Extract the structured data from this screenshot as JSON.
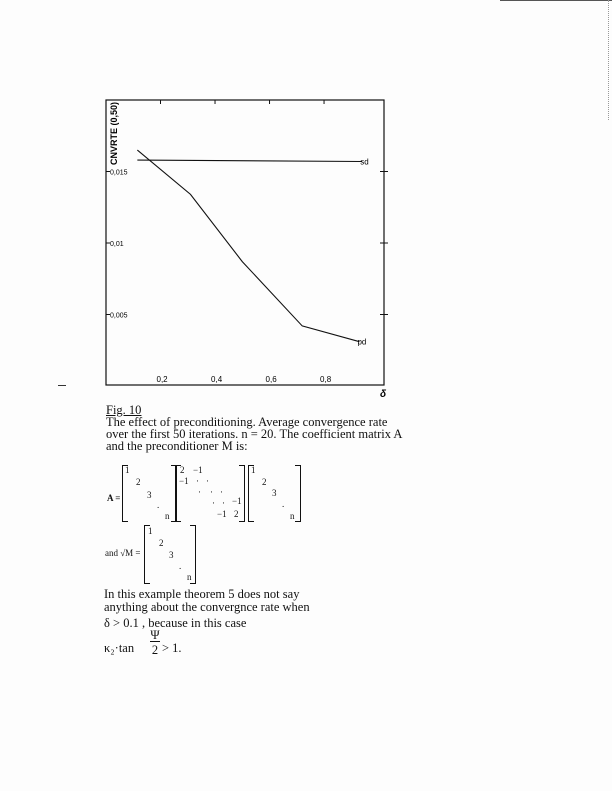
{
  "chart_data": {
    "type": "line",
    "xlabel": "δ",
    "ylabel": "CNVRTE (0,50)",
    "xlim": [
      0,
      1.02
    ],
    "ylim": [
      0,
      0.02
    ],
    "x_ticks": [
      "0,2",
      "0,4",
      "0,6",
      "0,8"
    ],
    "x_tick_values": [
      0.2,
      0.4,
      0.6,
      0.8
    ],
    "y_ticks": [
      "0,015",
      "0,01",
      "0,005"
    ],
    "y_tick_values": [
      0.015,
      0.01,
      0.005
    ],
    "grid": false,
    "series": [
      {
        "name": "sd",
        "x": [
          0.115,
          0.94
        ],
        "y": [
          0.0158,
          0.0157
        ]
      },
      {
        "name": "pd",
        "x": [
          0.115,
          0.31,
          0.5,
          0.72,
          0.93
        ],
        "y": [
          0.0165,
          0.0134,
          0.0087,
          0.0042,
          0.0031
        ]
      }
    ]
  },
  "caption": {
    "fig_label": "Fig. 10",
    "lines": [
      "The effect of preconditioning. Average convergence rate",
      "over the first 50 iterations. n = 20. The coefficient matrix A",
      "and the preconditioner M is:"
    ]
  },
  "math": {
    "a_label": "A =",
    "diag": [
      "1",
      "2",
      "3",
      ".",
      "n"
    ],
    "tri": [
      "2",
      "−1",
      "−1",
      "·",
      "·",
      "·",
      "·",
      "·",
      "·",
      "·",
      "−1",
      "−1",
      "2"
    ],
    "sqrtm_label": "and √M ="
  },
  "body": {
    "lines": [
      "In this example theorem 5 does not say",
      "anything about the convergnce rate when",
      "δ > 0.1 ,  because in this case"
    ],
    "formula_left": "κ₂·tan",
    "formula_num": "Ψ",
    "formula_den": "2",
    "formula_right": "> 1."
  }
}
